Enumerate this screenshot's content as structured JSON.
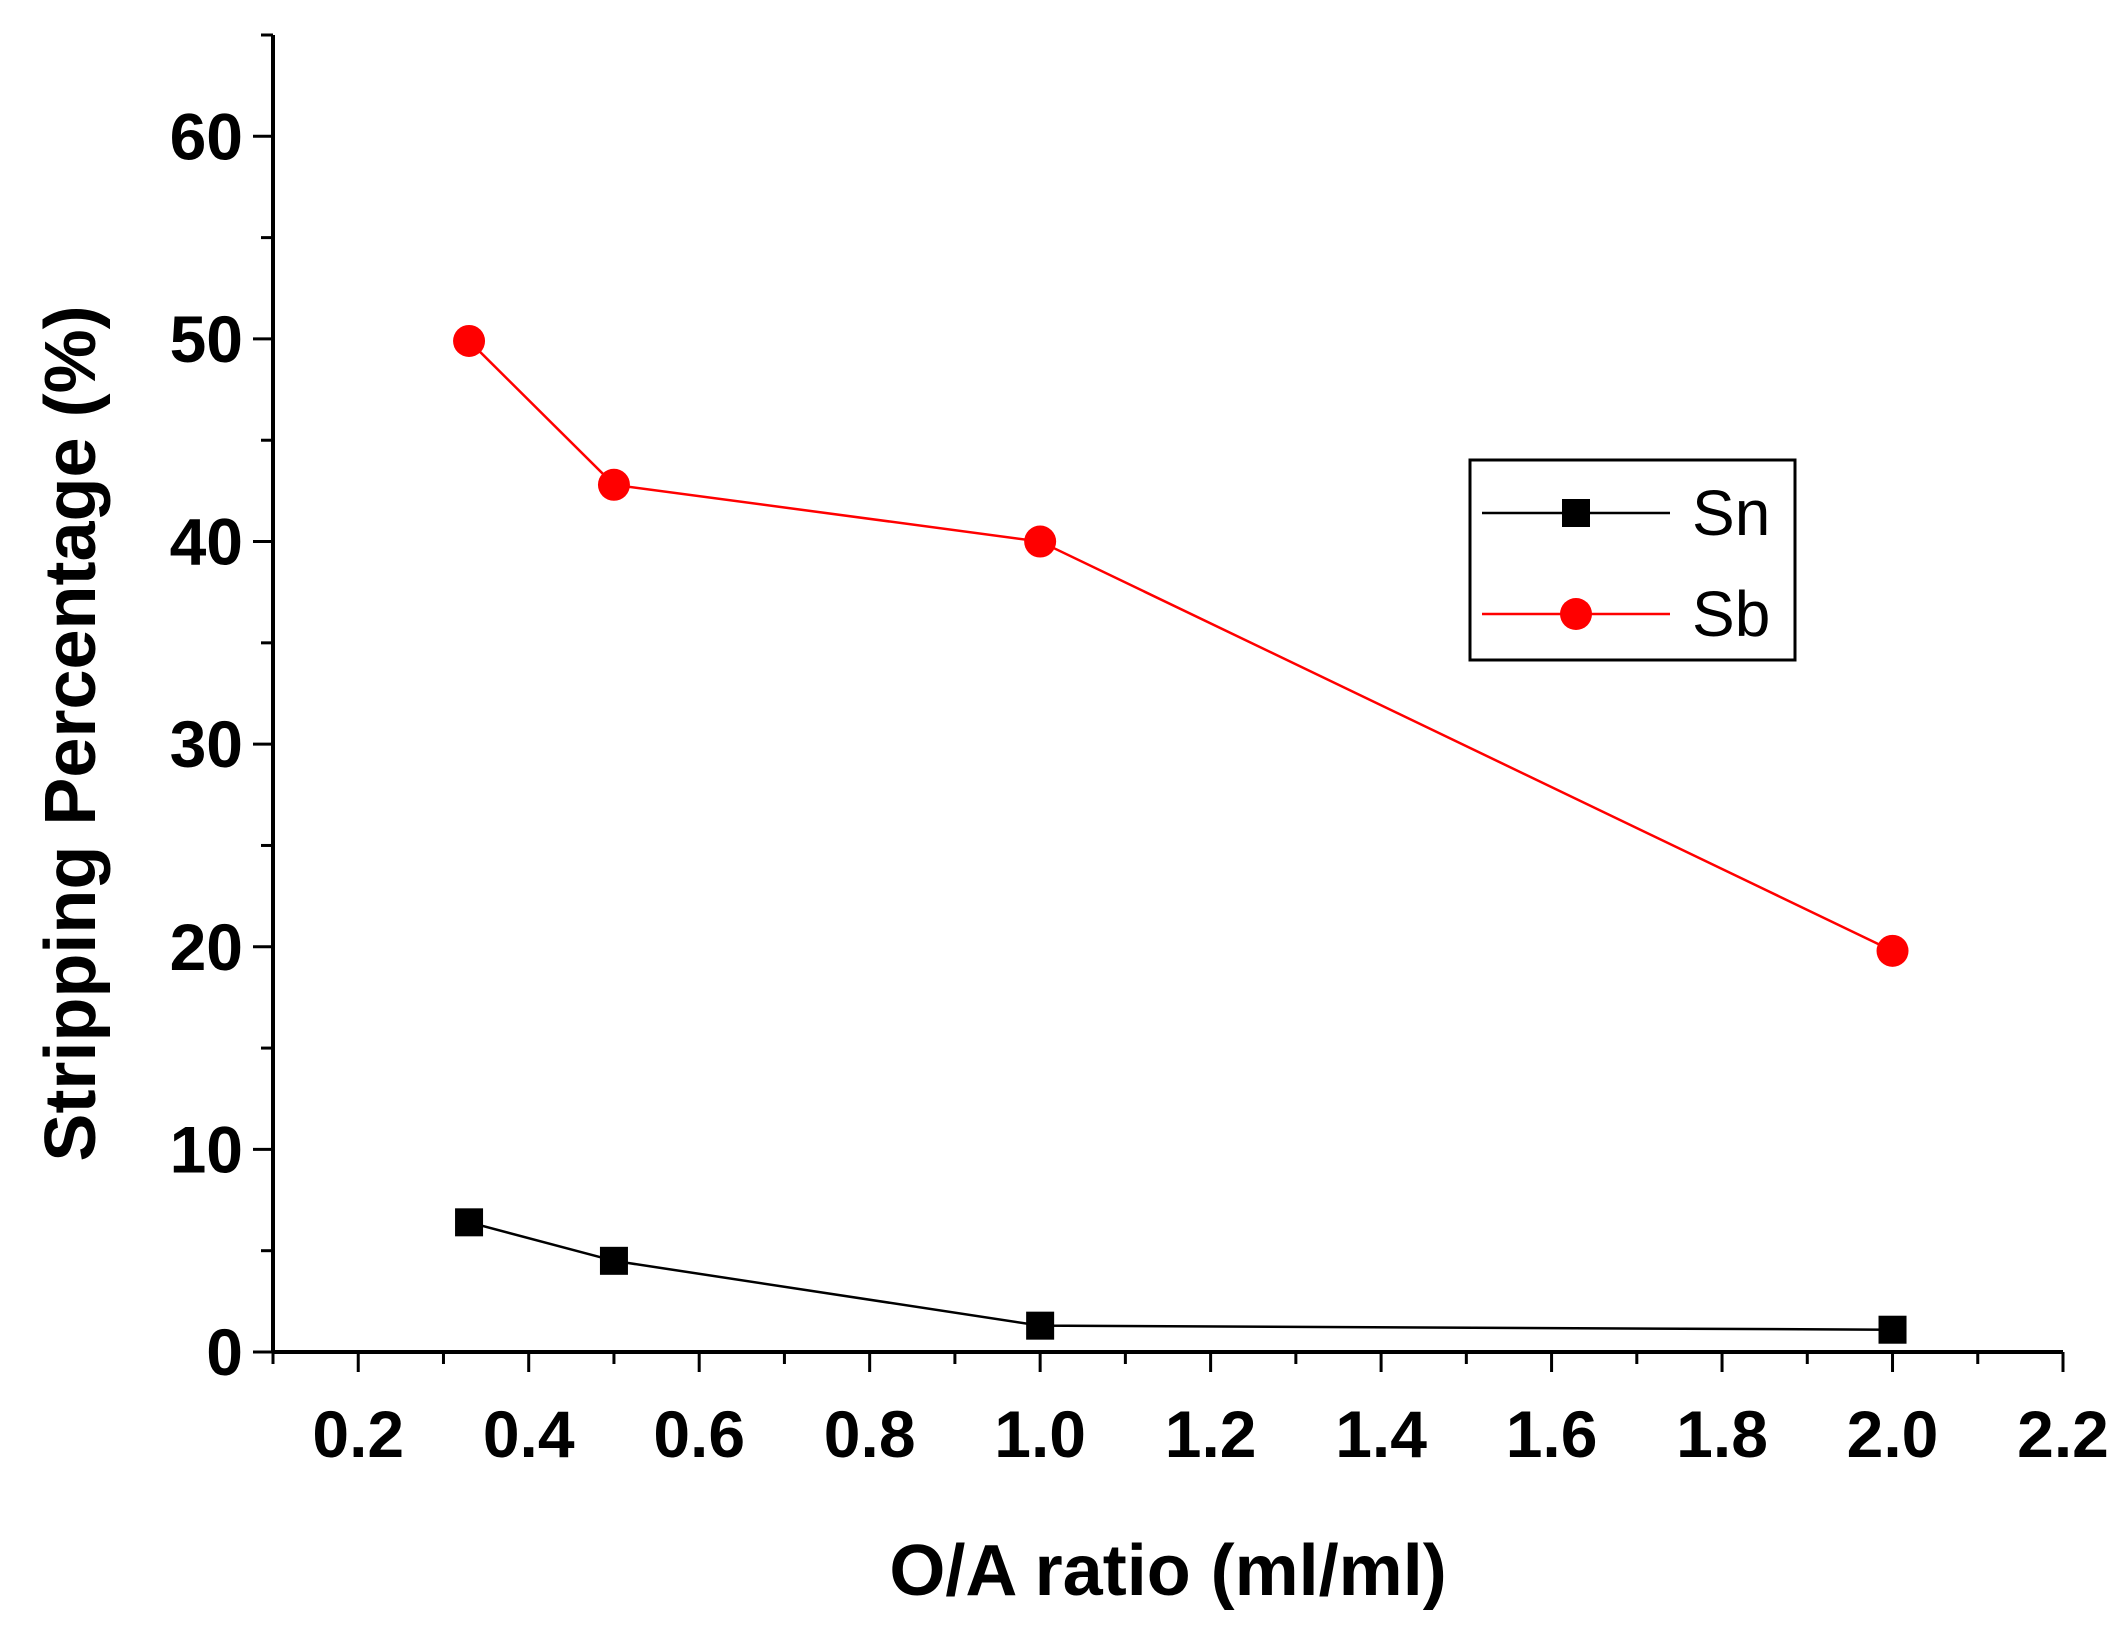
{
  "chart_data": {
    "type": "line",
    "title": "",
    "xlabel": "O/A ratio (ml/ml)",
    "ylabel": "Stripping Percentage (%)",
    "xlim": [
      0.1,
      2.2
    ],
    "ylim": [
      0,
      65
    ],
    "x_ticks": [
      0.2,
      0.4,
      0.6,
      0.8,
      1.0,
      1.2,
      1.4,
      1.6,
      1.8,
      2.0,
      2.2
    ],
    "x_tick_labels": [
      "0.2",
      "0.4",
      "0.6",
      "0.8",
      "1.0",
      "1.2",
      "1.4",
      "1.6",
      "1.8",
      "2.0",
      "2.2"
    ],
    "y_ticks": [
      0,
      10,
      20,
      30,
      40,
      50,
      60
    ],
    "y_tick_labels": [
      "0",
      "10",
      "20",
      "30",
      "40",
      "50",
      "60"
    ],
    "grid": false,
    "legend_position": "upper-right",
    "series": [
      {
        "name": "Sn",
        "marker": "square",
        "color": "#000000",
        "x": [
          0.33,
          0.5,
          1.0,
          2.0
        ],
        "y": [
          6.4,
          4.5,
          1.3,
          1.1
        ]
      },
      {
        "name": "Sb",
        "marker": "circle",
        "color": "#ff0000",
        "x": [
          0.33,
          0.5,
          1.0,
          2.0
        ],
        "y": [
          49.9,
          42.8,
          40.0,
          19.8
        ]
      }
    ]
  }
}
